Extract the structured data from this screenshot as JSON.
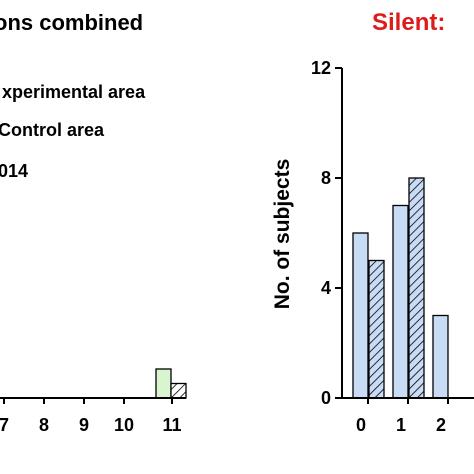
{
  "chart_data": [
    {
      "type": "bar",
      "title": "ons combined",
      "legend": {
        "placement": "top-left",
        "entries": [
          "xperimental area",
          "Control area",
          "014"
        ]
      },
      "categories": [
        "7",
        "8",
        "9",
        "10",
        "11"
      ],
      "series": [
        {
          "name": "Experimental area",
          "pattern": "solid",
          "values": [
            0,
            0,
            0,
            0,
            2
          ]
        },
        {
          "name": "Control area",
          "pattern": "hatched",
          "values": [
            0,
            0,
            0,
            0,
            1
          ]
        }
      ],
      "colors": {
        "experimental_fill": "#d9f5cf",
        "control_fill": "#ffffff",
        "stroke": "#000000"
      }
    },
    {
      "type": "bar",
      "title": "Silent:",
      "title_color": "#dd1c1c",
      "ylabel": "No. of subjects",
      "ylim": [
        0,
        12
      ],
      "yticks": [
        "0",
        "4",
        "8",
        "12"
      ],
      "categories": [
        "0",
        "1",
        "2"
      ],
      "series": [
        {
          "name": "Experimental area",
          "pattern": "solid",
          "values": [
            6,
            7,
            3
          ]
        },
        {
          "name": "Control area",
          "pattern": "hatched",
          "values": [
            5,
            8,
            0
          ]
        }
      ],
      "colors": {
        "experimental_fill": "#c8dcf6",
        "control_fill": "#c8dcf6",
        "stroke": "#000000"
      }
    }
  ]
}
